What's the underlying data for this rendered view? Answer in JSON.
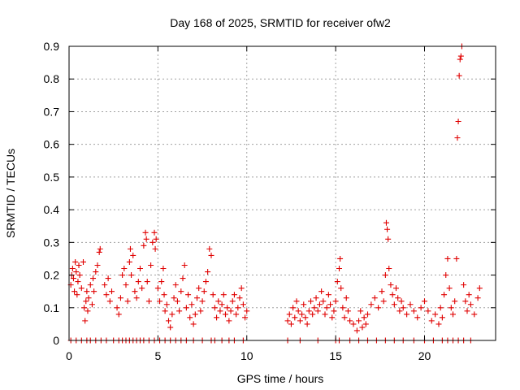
{
  "chart_data": {
    "type": "scatter",
    "title": "Day 168 of 2025, SRMTID for receiver ofw2",
    "xlabel": "GPS time / hours",
    "ylabel": "SRMTID / TECUs",
    "xlim": [
      0,
      24
    ],
    "ylim": [
      0,
      0.9
    ],
    "xticks": [
      0,
      5,
      10,
      15,
      20
    ],
    "yticks": [
      0,
      0.1,
      0.2,
      0.3,
      0.4,
      0.5,
      0.6,
      0.7,
      0.8,
      0.9
    ],
    "ytick_labels": [
      "0",
      "0.1",
      "0.2",
      "0.3",
      "0.4",
      "0.5",
      "0.6",
      "0.7",
      "0.8",
      "0.9"
    ],
    "grid": true,
    "marker": "+",
    "color": "#e00000",
    "series": [
      {
        "name": "SRMTID",
        "points": [
          [
            0.1,
            0.0
          ],
          [
            0.4,
            0.0
          ],
          [
            0.7,
            0.0
          ],
          [
            1.0,
            0.0
          ],
          [
            1.2,
            0.0
          ],
          [
            1.5,
            0.0
          ],
          [
            1.8,
            0.0
          ],
          [
            2.1,
            0.0
          ],
          [
            2.5,
            0.0
          ],
          [
            2.8,
            0.0
          ],
          [
            3.0,
            0.0
          ],
          [
            3.2,
            0.0
          ],
          [
            3.4,
            0.0
          ],
          [
            3.6,
            0.0
          ],
          [
            3.8,
            0.0
          ],
          [
            4.0,
            0.0
          ],
          [
            4.2,
            0.0
          ],
          [
            4.5,
            0.0
          ],
          [
            4.8,
            0.0
          ],
          [
            5.1,
            0.0
          ],
          [
            5.4,
            0.0
          ],
          [
            5.7,
            0.0
          ],
          [
            6.0,
            0.0
          ],
          [
            6.3,
            0.0
          ],
          [
            6.6,
            0.0
          ],
          [
            7.0,
            0.0
          ],
          [
            7.5,
            0.0
          ],
          [
            8.0,
            0.0
          ],
          [
            8.2,
            0.0
          ],
          [
            8.6,
            0.0
          ],
          [
            9.0,
            0.0
          ],
          [
            9.3,
            0.0
          ],
          [
            9.8,
            0.0
          ],
          [
            12.3,
            0.0
          ],
          [
            13.0,
            0.0
          ],
          [
            14.0,
            0.0
          ],
          [
            15.0,
            0.0
          ],
          [
            15.2,
            0.0
          ],
          [
            15.8,
            0.0
          ],
          [
            16.3,
            0.0
          ],
          [
            16.8,
            0.0
          ],
          [
            17.3,
            0.0
          ],
          [
            17.8,
            0.0
          ],
          [
            18.3,
            0.0
          ],
          [
            18.8,
            0.0
          ],
          [
            19.4,
            0.0
          ],
          [
            20.0,
            0.0
          ],
          [
            20.5,
            0.0
          ],
          [
            21.0,
            0.0
          ],
          [
            21.3,
            0.0
          ],
          [
            21.6,
            0.0
          ],
          [
            21.9,
            0.0
          ],
          [
            22.2,
            0.0
          ],
          [
            22.6,
            0.0
          ],
          [
            0.1,
            0.17
          ],
          [
            0.15,
            0.2
          ],
          [
            0.2,
            0.22
          ],
          [
            0.25,
            0.19
          ],
          [
            0.3,
            0.15
          ],
          [
            0.35,
            0.24
          ],
          [
            0.4,
            0.21
          ],
          [
            0.45,
            0.14
          ],
          [
            0.5,
            0.18
          ],
          [
            0.55,
            0.23
          ],
          [
            0.6,
            0.2
          ],
          [
            0.7,
            0.16
          ],
          [
            0.8,
            0.24
          ],
          [
            0.85,
            0.1
          ],
          [
            0.9,
            0.06
          ],
          [
            0.95,
            0.12
          ],
          [
            1.0,
            0.15
          ],
          [
            1.05,
            0.09
          ],
          [
            1.1,
            0.13
          ],
          [
            1.2,
            0.17
          ],
          [
            1.3,
            0.11
          ],
          [
            1.35,
            0.19
          ],
          [
            1.4,
            0.15
          ],
          [
            1.5,
            0.21
          ],
          [
            1.6,
            0.23
          ],
          [
            1.7,
            0.27
          ],
          [
            1.75,
            0.28
          ],
          [
            2.0,
            0.17
          ],
          [
            2.1,
            0.14
          ],
          [
            2.2,
            0.19
          ],
          [
            2.3,
            0.12
          ],
          [
            2.4,
            0.15
          ],
          [
            2.7,
            0.1
          ],
          [
            2.8,
            0.08
          ],
          [
            2.9,
            0.13
          ],
          [
            3.0,
            0.2
          ],
          [
            3.1,
            0.22
          ],
          [
            3.2,
            0.17
          ],
          [
            3.3,
            0.12
          ],
          [
            3.4,
            0.24
          ],
          [
            3.45,
            0.28
          ],
          [
            3.5,
            0.2
          ],
          [
            3.6,
            0.26
          ],
          [
            3.7,
            0.15
          ],
          [
            3.8,
            0.13
          ],
          [
            3.9,
            0.18
          ],
          [
            4.0,
            0.22
          ],
          [
            4.1,
            0.16
          ],
          [
            4.2,
            0.29
          ],
          [
            4.3,
            0.33
          ],
          [
            4.35,
            0.31
          ],
          [
            4.4,
            0.18
          ],
          [
            4.5,
            0.12
          ],
          [
            4.6,
            0.23
          ],
          [
            4.7,
            0.3
          ],
          [
            4.8,
            0.33
          ],
          [
            4.85,
            0.28
          ],
          [
            4.9,
            0.31
          ],
          [
            5.0,
            0.16
          ],
          [
            5.1,
            0.12
          ],
          [
            5.2,
            0.18
          ],
          [
            5.3,
            0.22
          ],
          [
            5.35,
            0.14
          ],
          [
            5.4,
            0.09
          ],
          [
            5.5,
            0.11
          ],
          [
            5.6,
            0.06
          ],
          [
            5.7,
            0.04
          ],
          [
            5.8,
            0.08
          ],
          [
            5.9,
            0.13
          ],
          [
            6.0,
            0.17
          ],
          [
            6.1,
            0.12
          ],
          [
            6.2,
            0.09
          ],
          [
            6.3,
            0.15
          ],
          [
            6.4,
            0.19
          ],
          [
            6.5,
            0.23
          ],
          [
            6.6,
            0.1
          ],
          [
            6.7,
            0.14
          ],
          [
            6.8,
            0.07
          ],
          [
            6.9,
            0.11
          ],
          [
            7.0,
            0.05
          ],
          [
            7.1,
            0.08
          ],
          [
            7.2,
            0.13
          ],
          [
            7.3,
            0.16
          ],
          [
            7.4,
            0.09
          ],
          [
            7.5,
            0.12
          ],
          [
            7.6,
            0.15
          ],
          [
            7.7,
            0.18
          ],
          [
            7.8,
            0.21
          ],
          [
            7.9,
            0.28
          ],
          [
            8.0,
            0.26
          ],
          [
            8.1,
            0.14
          ],
          [
            8.2,
            0.1
          ],
          [
            8.3,
            0.07
          ],
          [
            8.4,
            0.12
          ],
          [
            8.5,
            0.09
          ],
          [
            8.6,
            0.11
          ],
          [
            8.7,
            0.14
          ],
          [
            8.8,
            0.08
          ],
          [
            8.9,
            0.1
          ],
          [
            9.0,
            0.06
          ],
          [
            9.1,
            0.09
          ],
          [
            9.2,
            0.12
          ],
          [
            9.3,
            0.14
          ],
          [
            9.4,
            0.08
          ],
          [
            9.5,
            0.1
          ],
          [
            9.6,
            0.13
          ],
          [
            9.7,
            0.16
          ],
          [
            9.8,
            0.11
          ],
          [
            9.9,
            0.07
          ],
          [
            10.0,
            0.09
          ],
          [
            12.3,
            0.06
          ],
          [
            12.4,
            0.08
          ],
          [
            12.5,
            0.05
          ],
          [
            12.6,
            0.1
          ],
          [
            12.7,
            0.07
          ],
          [
            12.8,
            0.12
          ],
          [
            12.9,
            0.09
          ],
          [
            13.0,
            0.06
          ],
          [
            13.1,
            0.08
          ],
          [
            13.2,
            0.11
          ],
          [
            13.3,
            0.07
          ],
          [
            13.4,
            0.05
          ],
          [
            13.5,
            0.09
          ],
          [
            13.6,
            0.12
          ],
          [
            13.7,
            0.08
          ],
          [
            13.8,
            0.1
          ],
          [
            13.9,
            0.13
          ],
          [
            14.0,
            0.09
          ],
          [
            14.1,
            0.11
          ],
          [
            14.2,
            0.15
          ],
          [
            14.3,
            0.12
          ],
          [
            14.4,
            0.08
          ],
          [
            14.5,
            0.1
          ],
          [
            14.6,
            0.14
          ],
          [
            14.7,
            0.11
          ],
          [
            14.8,
            0.07
          ],
          [
            14.9,
            0.09
          ],
          [
            15.0,
            0.12
          ],
          [
            15.1,
            0.18
          ],
          [
            15.2,
            0.22
          ],
          [
            15.25,
            0.25
          ],
          [
            15.3,
            0.16
          ],
          [
            15.4,
            0.1
          ],
          [
            15.5,
            0.07
          ],
          [
            15.6,
            0.13
          ],
          [
            15.7,
            0.09
          ],
          [
            15.8,
            0.06
          ],
          [
            16.0,
            0.05
          ],
          [
            16.2,
            0.03
          ],
          [
            16.3,
            0.06
          ],
          [
            16.4,
            0.09
          ],
          [
            16.5,
            0.04
          ],
          [
            16.6,
            0.07
          ],
          [
            16.7,
            0.05
          ],
          [
            16.8,
            0.08
          ],
          [
            17.0,
            0.11
          ],
          [
            17.2,
            0.13
          ],
          [
            17.4,
            0.1
          ],
          [
            17.6,
            0.15
          ],
          [
            17.7,
            0.12
          ],
          [
            17.8,
            0.2
          ],
          [
            17.85,
            0.36
          ],
          [
            17.9,
            0.34
          ],
          [
            17.95,
            0.31
          ],
          [
            18.0,
            0.22
          ],
          [
            18.1,
            0.17
          ],
          [
            18.2,
            0.14
          ],
          [
            18.3,
            0.11
          ],
          [
            18.4,
            0.16
          ],
          [
            18.5,
            0.13
          ],
          [
            18.6,
            0.09
          ],
          [
            18.7,
            0.12
          ],
          [
            18.8,
            0.1
          ],
          [
            19.0,
            0.08
          ],
          [
            19.2,
            0.11
          ],
          [
            19.4,
            0.09
          ],
          [
            19.6,
            0.07
          ],
          [
            19.8,
            0.1
          ],
          [
            20.0,
            0.12
          ],
          [
            20.2,
            0.09
          ],
          [
            20.4,
            0.06
          ],
          [
            20.6,
            0.08
          ],
          [
            20.8,
            0.05
          ],
          [
            20.9,
            0.1
          ],
          [
            21.0,
            0.07
          ],
          [
            21.1,
            0.14
          ],
          [
            21.2,
            0.2
          ],
          [
            21.3,
            0.25
          ],
          [
            21.4,
            0.16
          ],
          [
            21.5,
            0.1
          ],
          [
            21.6,
            0.08
          ],
          [
            21.7,
            0.12
          ],
          [
            21.8,
            0.25
          ],
          [
            21.85,
            0.62
          ],
          [
            21.9,
            0.67
          ],
          [
            21.95,
            0.81
          ],
          [
            22.0,
            0.86
          ],
          [
            22.05,
            0.87
          ],
          [
            22.1,
            0.9
          ],
          [
            22.2,
            0.17
          ],
          [
            22.3,
            0.12
          ],
          [
            22.4,
            0.09
          ],
          [
            22.5,
            0.14
          ],
          [
            22.6,
            0.11
          ],
          [
            22.8,
            0.08
          ],
          [
            23.0,
            0.13
          ],
          [
            23.1,
            0.16
          ]
        ]
      }
    ]
  }
}
